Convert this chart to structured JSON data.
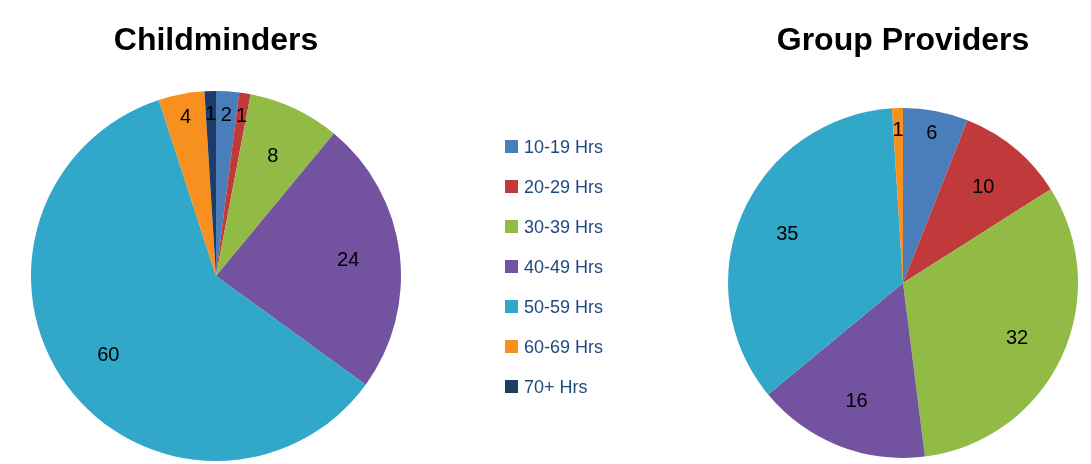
{
  "chart_data": [
    {
      "type": "pie",
      "title": "Childminders",
      "categories": [
        "10-19 Hrs",
        "20-29 Hrs",
        "30-39 Hrs",
        "40-49 Hrs",
        "50-59 Hrs",
        "60-69 Hrs",
        "70+ Hrs"
      ],
      "values": [
        2,
        1,
        8,
        24,
        60,
        4,
        1
      ],
      "colors": [
        "#4a7ebb",
        "#c0393b",
        "#92bb45",
        "#7352a0",
        "#31a7c9",
        "#f7901e",
        "#1f3c68"
      ],
      "data_labels": true,
      "legend": "right"
    },
    {
      "type": "pie",
      "title": "Group Providers",
      "categories": [
        null,
        null,
        null,
        null,
        null,
        null
      ],
      "values": [
        6,
        10,
        32,
        16,
        35,
        1
      ],
      "colors": [
        "#4a7ebb",
        "#c0393b",
        "#92bb45",
        "#7352a0",
        "#31a7c9",
        "#f7901e"
      ],
      "data_labels": true
    }
  ]
}
